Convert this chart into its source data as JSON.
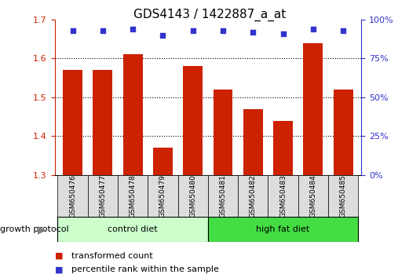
{
  "title": "GDS4143 / 1422887_a_at",
  "samples": [
    "GSM650476",
    "GSM650477",
    "GSM650478",
    "GSM650479",
    "GSM650480",
    "GSM650481",
    "GSM650482",
    "GSM650483",
    "GSM650484",
    "GSM650485"
  ],
  "transformed_count": [
    1.57,
    1.57,
    1.61,
    1.37,
    1.58,
    1.52,
    1.47,
    1.44,
    1.64,
    1.52
  ],
  "percentile_rank": [
    93,
    93,
    94,
    90,
    93,
    93,
    92,
    91,
    94,
    93
  ],
  "ylim_left": [
    1.3,
    1.7
  ],
  "ylim_right": [
    0,
    100
  ],
  "yticks_left": [
    1.3,
    1.4,
    1.5,
    1.6,
    1.7
  ],
  "yticks_right": [
    0,
    25,
    50,
    75,
    100
  ],
  "bar_color": "#CC2200",
  "dot_color": "#3333CC",
  "control_label": "control diet",
  "hfd_label": "high fat diet",
  "growth_protocol_label": "growth protocol",
  "legend_bar_label": "transformed count",
  "legend_dot_label": "percentile rank within the sample",
  "control_color": "#CCFFCC",
  "hfd_color": "#44DD44",
  "left_axis_color": "#CC2200",
  "right_axis_color": "#3333CC",
  "title_fontsize": 11,
  "tick_fontsize": 8,
  "label_fontsize": 8,
  "bar_bottom": 1.3,
  "gridlines": [
    1.4,
    1.5,
    1.6
  ]
}
